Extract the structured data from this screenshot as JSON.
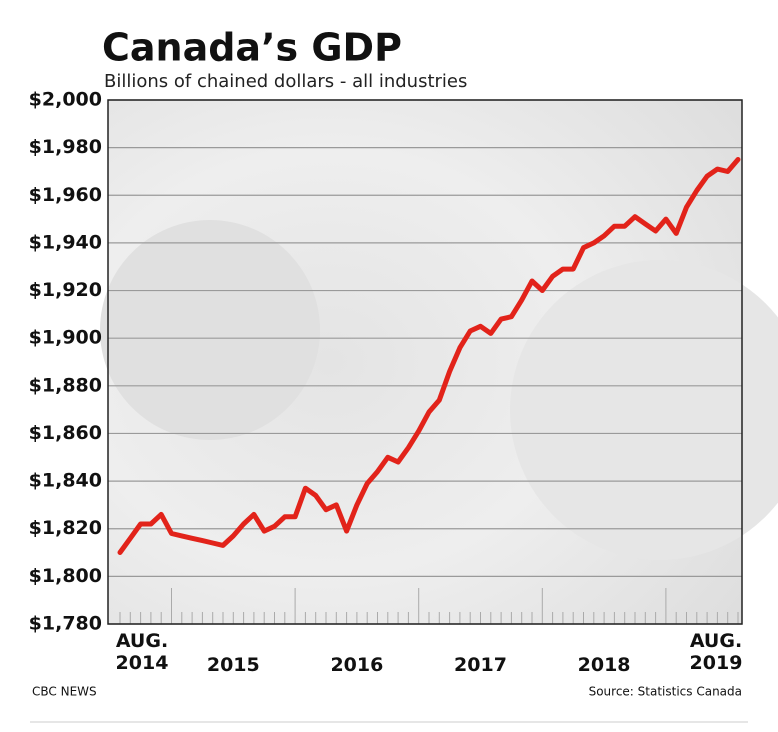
{
  "chart_data": {
    "type": "line",
    "title": "Canada’s GDP",
    "subtitle": "Billions of chained dollars - all industries",
    "source": "Source: Statistics Canada",
    "credit": "CBC NEWS",
    "categories": [
      "AUG.\n2014",
      null,
      null,
      null,
      null,
      null,
      null,
      null,
      null,
      null,
      null,
      "2015",
      null,
      null,
      null,
      null,
      null,
      null,
      null,
      null,
      null,
      null,
      null,
      "2016",
      null,
      null,
      null,
      null,
      null,
      null,
      null,
      null,
      null,
      null,
      null,
      "2017",
      null,
      null,
      null,
      null,
      null,
      null,
      null,
      null,
      null,
      null,
      null,
      "2018",
      null,
      null,
      null,
      null,
      null,
      null,
      null,
      null,
      null,
      null,
      null,
      null,
      "AUG.\n2019"
    ],
    "series": [
      {
        "name": "GDP",
        "color": "#e2231a",
        "values": [
          1810,
          1816,
          1822,
          1822,
          1826,
          1818,
          1817,
          1816,
          1815,
          1814,
          1813,
          1817,
          1822,
          1826,
          1819,
          1821,
          1825,
          1825,
          1837,
          1834,
          1828,
          1830,
          1819,
          1830,
          1839,
          1844,
          1850,
          1848,
          1854,
          1861,
          1869,
          1874,
          1886,
          1896,
          1903,
          1905,
          1902,
          1908,
          1909,
          1916,
          1924,
          1920,
          1926,
          1929,
          1929,
          1938,
          1940,
          1943,
          1947,
          1947,
          1951,
          1948,
          1945,
          1950,
          1944,
          1955,
          1962,
          1968,
          1971,
          1970,
          1975
        ]
      }
    ],
    "ylim": [
      1780,
      2000
    ],
    "yticks": [
      {
        "value": 1780,
        "label": "$1,780"
      },
      {
        "value": 1800,
        "label": "$1,800"
      },
      {
        "value": 1820,
        "label": "$1,820"
      },
      {
        "value": 1840,
        "label": "$1,840"
      },
      {
        "value": 1860,
        "label": "$1,860"
      },
      {
        "value": 1880,
        "label": "$1,880"
      },
      {
        "value": 1900,
        "label": "$1,900"
      },
      {
        "value": 1920,
        "label": "$1,920"
      },
      {
        "value": 1940,
        "label": "$1,940"
      },
      {
        "value": 1960,
        "label": "$1,960"
      },
      {
        "value": 1980,
        "label": "$1,980"
      },
      {
        "value": 2000,
        "label": "$2,000"
      }
    ],
    "grid": true
  }
}
